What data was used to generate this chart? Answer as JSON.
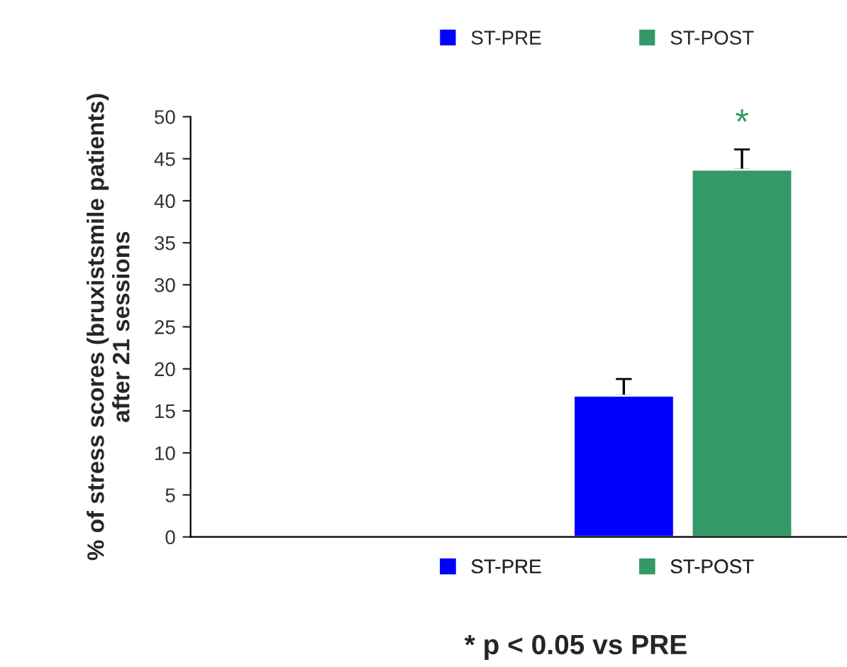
{
  "chart_data": {
    "type": "bar",
    "ylabel": "% of stress scores (bruxistsmile patients)\nafter 21 sessions",
    "categories": [
      null,
      null
    ],
    "series": [
      {
        "name": "ST-PRE",
        "color": "#0000ff",
        "values": [
          null,
          16.8
        ],
        "errors": [
          null,
          2.0
        ]
      },
      {
        "name": "ST-POST",
        "color": "#339966",
        "values": [
          null,
          43.7
        ],
        "errors": [
          null,
          2.4
        ]
      }
    ],
    "ylim": [
      0,
      50
    ],
    "yticks": [
      0,
      5,
      10,
      15,
      20,
      25,
      30,
      35,
      40,
      45,
      50
    ],
    "grid": false,
    "legend": [
      "top",
      "bottom"
    ],
    "annotations": [
      "*",
      "* p < 0.05 vs PRE"
    ]
  }
}
